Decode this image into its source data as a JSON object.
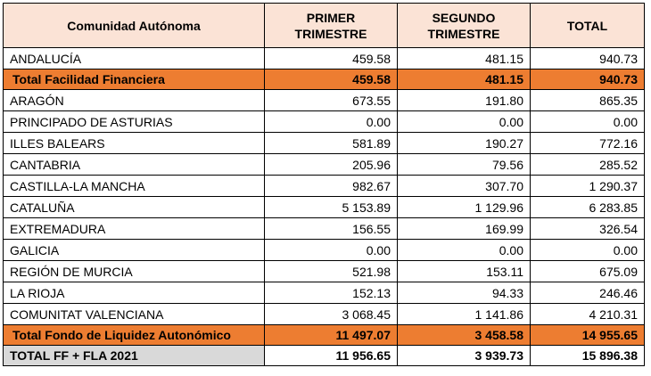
{
  "headers": [
    "Comunidad Autónoma",
    "PRIMER TRIMESTRE",
    "SEGUNDO TRIMESTRE",
    "TOTAL"
  ],
  "header_lines": [
    [
      "Comunidad Autónoma"
    ],
    [
      "PRIMER",
      "TRIMESTRE"
    ],
    [
      "SEGUNDO",
      "TRIMESTRE"
    ],
    [
      "TOTAL"
    ]
  ],
  "rows": [
    {
      "name": "ANDALUCÍA",
      "q1": "459.58",
      "q2": "481.15",
      "total": "940.73"
    },
    {
      "name": "Total Facilidad Financiera",
      "q1": "459.58",
      "q2": "481.15",
      "total": "940.73"
    },
    {
      "name": "ARAGÓN",
      "q1": "673.55",
      "q2": "191.80",
      "total": "865.35"
    },
    {
      "name": "PRINCIPADO DE ASTURIAS",
      "q1": "0.00",
      "q2": "0.00",
      "total": "0.00"
    },
    {
      "name": "ILLES BALEARS",
      "q1": "581.89",
      "q2": "190.27",
      "total": "772.16"
    },
    {
      "name": "CANTABRIA",
      "q1": "205.96",
      "q2": "79.56",
      "total": "285.52"
    },
    {
      "name": "CASTILLA-LA MANCHA",
      "q1": "982.67",
      "q2": "307.70",
      "total": "1 290.37"
    },
    {
      "name": "CATALUÑA",
      "q1": "5 153.89",
      "q2": "1 129.96",
      "total": "6 283.85"
    },
    {
      "name": "EXTREMADURA",
      "q1": "156.55",
      "q2": "169.99",
      "total": "326.54"
    },
    {
      "name": "GALICIA",
      "q1": "0.00",
      "q2": "0.00",
      "total": "0.00"
    },
    {
      "name": "REGIÓN DE MURCIA",
      "q1": "521.98",
      "q2": "153.11",
      "total": "675.09"
    },
    {
      "name": "LA RIOJA",
      "q1": "152.13",
      "q2": "94.33",
      "total": "246.46"
    },
    {
      "name": "COMUNITAT VALENCIANA",
      "q1": "3 068.45",
      "q2": "1 141.86",
      "total": "4 210.31"
    },
    {
      "name": "Total Fondo de Liquidez Autonómico",
      "q1": "11 497.07",
      "q2": "3 458.58",
      "total": "14 955.65"
    },
    {
      "name": "TOTAL FF + FLA 2021",
      "q1": "11 956.65",
      "q2": "3 939.73",
      "total": "15 896.38"
    }
  ],
  "colors": {
    "header_bg": "#fbe3d6",
    "band_bg": "#ed7d31",
    "grand_total_label_bg": "#d9d9d9"
  }
}
